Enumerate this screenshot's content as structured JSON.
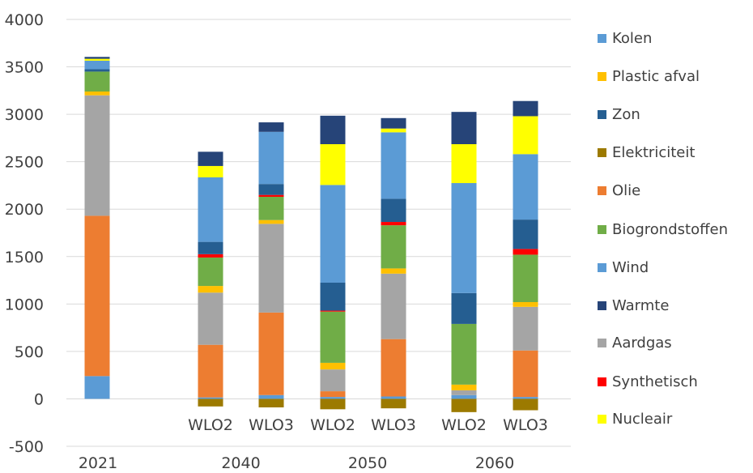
{
  "chart_data": {
    "type": "bar",
    "stacked": true,
    "y_ticks": [
      "4000",
      "3500",
      "3000",
      "2500",
      "2000",
      "1500",
      "1000",
      "500",
      "0",
      "-500"
    ],
    "ylim": [
      -500,
      4000
    ],
    "grid": true,
    "legend_position": "right",
    "groups": [
      {
        "label": "2021",
        "bars": [
          ""
        ]
      },
      {
        "label": "2040",
        "bars": [
          "WLO2",
          "WLO3"
        ]
      },
      {
        "label": "2050",
        "bars": [
          "WLO2",
          "WLO3"
        ]
      },
      {
        "label": "2060",
        "bars": [
          "WLO2",
          "WLO3"
        ]
      }
    ],
    "categories": [
      "2021",
      "2040 WLO2",
      "2040 WLO3",
      "2050 WLO2",
      "2050 WLO3",
      "2060 WLO2",
      "2060 WLO3"
    ],
    "stack_order": [
      "Elektriciteit",
      "Kolen",
      "Olie",
      "Aardgas",
      "Plastic afval",
      "Biogrondstoffen",
      "Synthetisch",
      "Zon",
      "Wind",
      "Nucleair",
      "Warmte"
    ],
    "legend_order": [
      "Kolen",
      "Plastic afval",
      "Zon",
      "Elektriciteit",
      "Olie",
      "Biogrondstoffen",
      "Wind",
      "Warmte",
      "Aardgas",
      "Synthetisch",
      "Nucleair"
    ],
    "legend_labels": {
      "Kolen": "Kolen",
      "Plastic afval": "Plastic afval",
      "Zon": "Zon",
      "Elektriciteit": "Elektriciteit",
      "Olie": "Olie",
      "Biogrondstoffen": "Biogrondstoffen",
      "Wind": "Wind",
      "Warmte": "Warmte",
      "Aardgas": "Aardgas",
      "Synthetisch": "Synthetisch",
      "Nucleair": "Nucleair"
    },
    "colors": {
      "Kolen": "#5b9bd5",
      "Plastic afval": "#ffc000",
      "Zon": "#255e91",
      "Elektriciteit": "#9c7a00",
      "Olie": "#ed7d31",
      "Biogrondstoffen": "#70ad47",
      "Wind": "#5b9bd5",
      "Warmte": "#264478",
      "Aardgas": "#a5a5a5",
      "Synthetisch": "#ff0000",
      "Nucleair": "#ffff00"
    },
    "series": [
      {
        "name": "Elektriciteit",
        "values": [
          0,
          -80,
          -90,
          -110,
          -100,
          -140,
          -120
        ]
      },
      {
        "name": "Kolen",
        "values": [
          240,
          15,
          40,
          20,
          25,
          40,
          20
        ]
      },
      {
        "name": "Olie",
        "values": [
          1690,
          555,
          870,
          60,
          605,
          0,
          490
        ]
      },
      {
        "name": "Aardgas",
        "values": [
          1270,
          550,
          935,
          230,
          690,
          50,
          460
        ]
      },
      {
        "name": "Plastic afval",
        "values": [
          40,
          70,
          40,
          70,
          55,
          60,
          50
        ]
      },
      {
        "name": "Biogrondstoffen",
        "values": [
          210,
          300,
          245,
          540,
          455,
          640,
          500
        ]
      },
      {
        "name": "Synthetisch",
        "values": [
          0,
          35,
          20,
          10,
          35,
          0,
          60
        ]
      },
      {
        "name": "Zon",
        "values": [
          25,
          130,
          115,
          295,
          245,
          325,
          310
        ]
      },
      {
        "name": "Wind",
        "values": [
          90,
          680,
          550,
          1030,
          700,
          1160,
          690
        ]
      },
      {
        "name": "Nucleair",
        "values": [
          20,
          120,
          0,
          430,
          40,
          410,
          400
        ]
      },
      {
        "name": "Warmte",
        "values": [
          20,
          150,
          100,
          300,
          110,
          340,
          160
        ]
      }
    ]
  }
}
